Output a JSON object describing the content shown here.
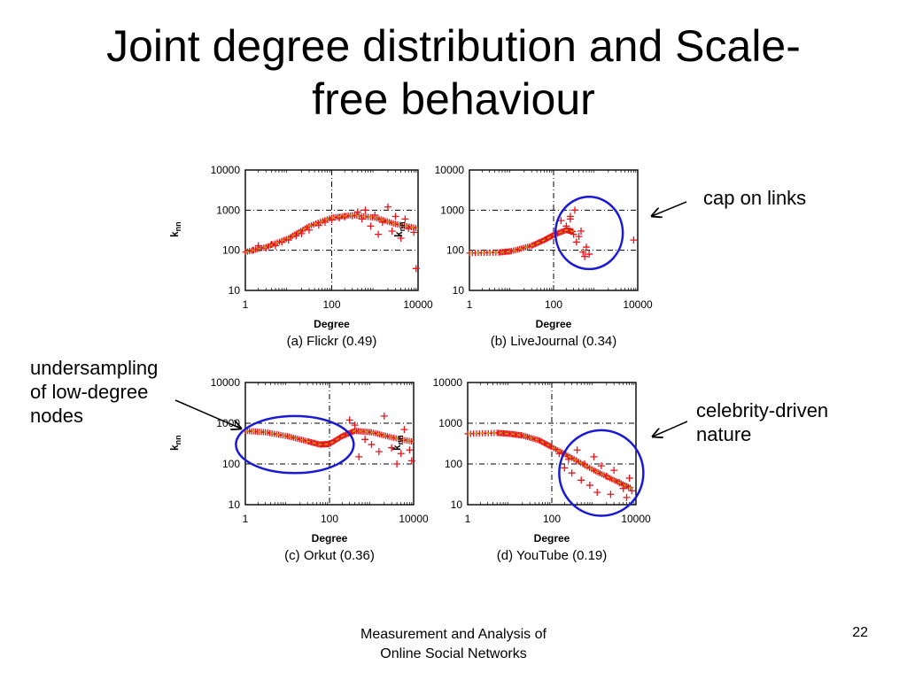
{
  "slide": {
    "title_lines": [
      "Joint degree distribution and Scale-",
      "free behaviour"
    ],
    "footer_lines": [
      "Measurement and Analysis of",
      "Online Social Networks"
    ],
    "page_number": "22"
  },
  "annotations": {
    "cap": [
      "cap on links"
    ],
    "undersampling": [
      "undersampling",
      "of low-degree",
      "nodes"
    ],
    "celebrity": [
      "celebrity-driven",
      "nature"
    ]
  },
  "colors": {
    "marker": "#e8141b",
    "fit_line": "#b8b000",
    "circle": "#1a1ad6"
  },
  "chart_data": [
    {
      "type": "scatter",
      "caption": "(a) Flickr (0.49)",
      "xlabel": "Degree",
      "ylabel": "knn",
      "x_scale": "log",
      "y_scale": "log",
      "xlim": [
        1,
        10000
      ],
      "ylim": [
        10,
        10000
      ],
      "xticks": [
        "1",
        "100",
        "10000"
      ],
      "yticks": [
        "10",
        "100",
        "1000",
        "10000"
      ],
      "grid": "dashed",
      "trend": [
        [
          1,
          90
        ],
        [
          3,
          120
        ],
        [
          10,
          200
        ],
        [
          30,
          400
        ],
        [
          100,
          650
        ],
        [
          300,
          750
        ],
        [
          1000,
          650
        ],
        [
          3000,
          450
        ],
        [
          10000,
          350
        ]
      ],
      "scatter_x": [
        1.5,
        2,
        3,
        4,
        5,
        7,
        10,
        15,
        20,
        30,
        50,
        70,
        100,
        150,
        200,
        300,
        400,
        500,
        600,
        800,
        1000,
        1200,
        1500,
        2000,
        2500,
        3000,
        4000,
        5000,
        6000,
        8000,
        9000
      ],
      "scatter_y": [
        100,
        130,
        115,
        140,
        130,
        160,
        180,
        230,
        260,
        320,
        420,
        500,
        570,
        640,
        680,
        720,
        900,
        600,
        1000,
        400,
        750,
        250,
        500,
        1200,
        300,
        700,
        200,
        600,
        350,
        280,
        35
      ],
      "circle": null
    },
    {
      "type": "scatter",
      "caption": "(b) LiveJournal (0.34)",
      "xlabel": "Degree",
      "ylabel": "knn",
      "x_scale": "log",
      "y_scale": "log",
      "xlim": [
        1,
        10000
      ],
      "ylim": [
        10,
        10000
      ],
      "xticks": [
        "1",
        "100",
        "10000"
      ],
      "yticks": [
        "10",
        "100",
        "1000",
        "10000"
      ],
      "grid": "dashed",
      "trend": [
        [
          1,
          85
        ],
        [
          5,
          88
        ],
        [
          10,
          95
        ],
        [
          30,
          130
        ],
        [
          60,
          180
        ],
        [
          100,
          240
        ],
        [
          200,
          320
        ],
        [
          300,
          290
        ]
      ],
      "scatter_x": [
        150,
        200,
        250,
        300,
        350,
        400,
        500,
        600,
        700,
        450,
        550,
        250,
        320,
        8000
      ],
      "scatter_y": [
        550,
        400,
        700,
        250,
        160,
        220,
        90,
        120,
        80,
        300,
        70,
        600,
        1000,
        180
      ],
      "circle": {
        "cx": 700,
        "cy": 270,
        "rx": 0.8,
        "ry": 0.9
      }
    },
    {
      "type": "scatter",
      "caption": "(c) Orkut (0.36)",
      "xlabel": "Degree",
      "ylabel": "knn",
      "x_scale": "log",
      "y_scale": "log",
      "xlim": [
        1,
        10000
      ],
      "ylim": [
        10,
        10000
      ],
      "xticks": [
        "1",
        "100",
        "10000"
      ],
      "yticks": [
        "10",
        "100",
        "1000",
        "10000"
      ],
      "grid": "dashed",
      "trend": [
        [
          1,
          650
        ],
        [
          3,
          600
        ],
        [
          10,
          480
        ],
        [
          30,
          360
        ],
        [
          60,
          300
        ],
        [
          100,
          310
        ],
        [
          200,
          480
        ],
        [
          400,
          650
        ],
        [
          1000,
          600
        ],
        [
          3000,
          450
        ],
        [
          10000,
          350
        ]
      ],
      "scatter_x": [
        300,
        400,
        500,
        700,
        1000,
        1500,
        2000,
        3000,
        4000,
        5000,
        6000,
        8000,
        9000
      ],
      "scatter_y": [
        1200,
        900,
        150,
        400,
        300,
        200,
        1500,
        250,
        100,
        180,
        700,
        220,
        120
      ],
      "circle": {
        "cx": 15,
        "cy": 300,
        "rx": 1.4,
        "ry": 0.7
      }
    },
    {
      "type": "scatter",
      "caption": "(d) YouTube (0.19)",
      "xlabel": "Degree",
      "ylabel": "knn",
      "x_scale": "log",
      "y_scale": "log",
      "xlim": [
        1,
        10000
      ],
      "ylim": [
        10,
        10000
      ],
      "xticks": [
        "1",
        "100",
        "10000"
      ],
      "yticks": [
        "10",
        "100",
        "1000",
        "10000"
      ],
      "grid": "dashed",
      "trend": [
        [
          1,
          550
        ],
        [
          5,
          580
        ],
        [
          10,
          550
        ],
        [
          20,
          500
        ],
        [
          50,
          380
        ],
        [
          100,
          260
        ],
        [
          300,
          140
        ],
        [
          1000,
          70
        ],
        [
          3000,
          40
        ],
        [
          8000,
          25
        ]
      ],
      "scatter_x": [
        150,
        200,
        250,
        300,
        400,
        500,
        600,
        800,
        1000,
        1200,
        1500,
        2000,
        2500,
        3000,
        4000,
        5000,
        6000,
        7000,
        8000
      ],
      "scatter_y": [
        180,
        80,
        130,
        60,
        220,
        40,
        100,
        30,
        150,
        20,
        90,
        50,
        18,
        70,
        35,
        25,
        15,
        45,
        22
      ],
      "circle": {
        "cx": 1500,
        "cy": 60,
        "rx": 1.0,
        "ry": 1.05
      }
    }
  ]
}
